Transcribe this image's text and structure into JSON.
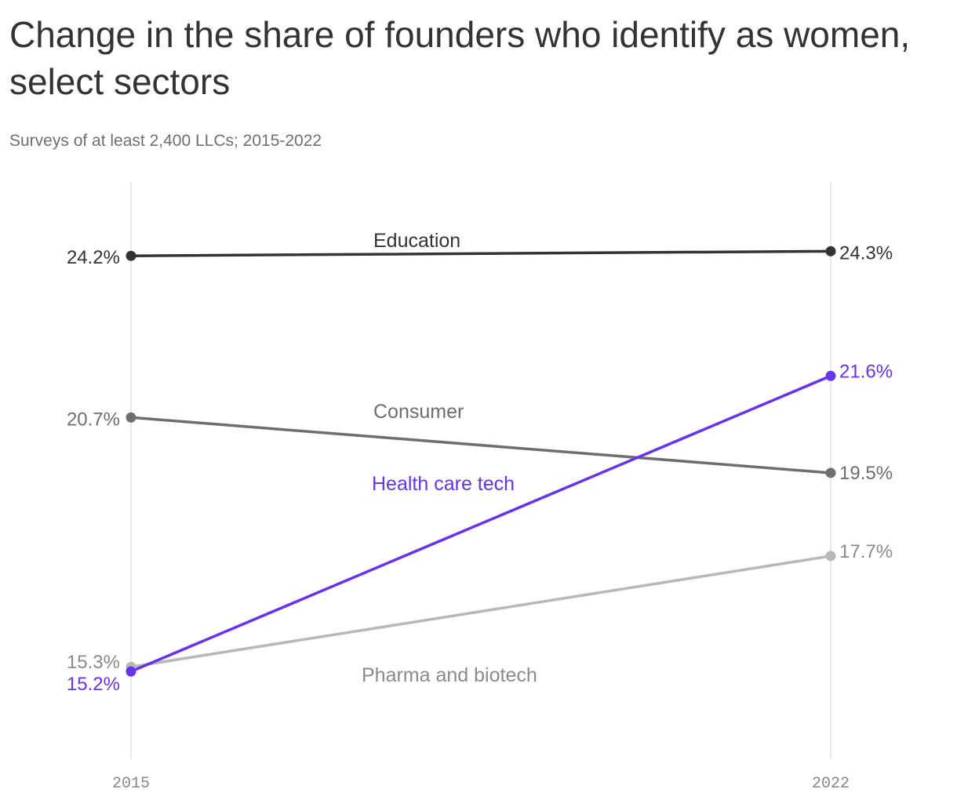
{
  "chart_data": {
    "type": "line",
    "title": "Change in the share of founders who identify as women, select sectors",
    "subtitle": "Surveys of at least 2,400 LLCs; 2015-2022",
    "x": [
      "2015",
      "2022"
    ],
    "ylim": [
      13.3,
      25.8
    ],
    "grid": "vertical lines at each year",
    "legend": "direct labels on lines",
    "series": [
      {
        "name": "Education",
        "values": [
          24.2,
          24.3
        ],
        "labels": [
          "24.2%",
          "24.3%"
        ],
        "color": "#333333"
      },
      {
        "name": "Consumer",
        "values": [
          20.7,
          19.5
        ],
        "labels": [
          "20.7%",
          "19.5%"
        ],
        "color": "#6e6e6e"
      },
      {
        "name": "Pharma and biotech",
        "values": [
          15.3,
          17.7
        ],
        "labels": [
          "15.3%",
          "17.7%"
        ],
        "color": "#b8b8b8"
      },
      {
        "name": "Health care tech",
        "values": [
          15.2,
          21.6
        ],
        "labels": [
          "15.2%",
          "21.6%"
        ],
        "color": "#6633ee"
      }
    ]
  }
}
